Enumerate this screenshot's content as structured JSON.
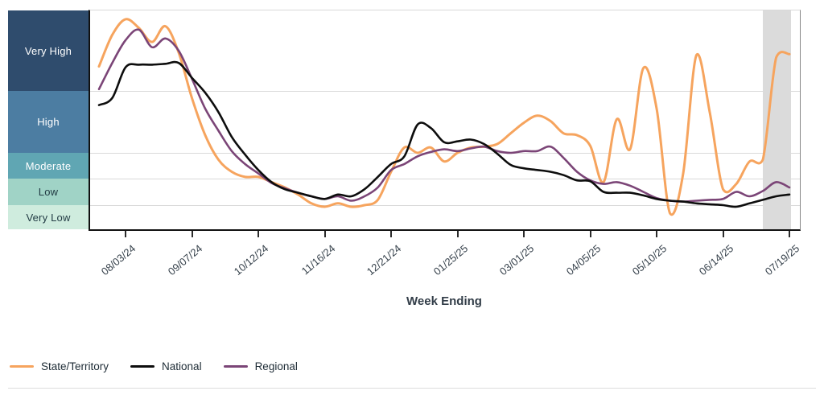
{
  "chart_data": {
    "type": "line",
    "xlabel": "Week Ending",
    "x": [
      "07/20/24",
      "07/27/24",
      "08/03/24",
      "08/10/24",
      "08/17/24",
      "08/24/24",
      "08/31/24",
      "09/07/24",
      "09/14/24",
      "09/21/24",
      "09/28/24",
      "10/05/24",
      "10/12/24",
      "10/19/24",
      "10/26/24",
      "11/02/24",
      "11/09/24",
      "11/16/24",
      "11/23/24",
      "11/30/24",
      "12/07/24",
      "12/14/24",
      "12/21/24",
      "12/28/24",
      "01/04/25",
      "01/11/25",
      "01/18/25",
      "01/25/25",
      "02/01/25",
      "02/08/25",
      "02/15/25",
      "02/22/25",
      "03/01/25",
      "03/08/25",
      "03/15/25",
      "03/22/25",
      "03/29/25",
      "04/05/25",
      "04/12/25",
      "04/19/25",
      "04/26/25",
      "05/03/25",
      "05/10/25",
      "05/17/25",
      "05/24/25",
      "05/31/25",
      "06/07/25",
      "06/14/25",
      "06/21/25",
      "06/28/25",
      "07/05/25",
      "07/12/25",
      "07/19/25"
    ],
    "x_tick_labels": [
      "08/03/24",
      "09/07/24",
      "10/12/24",
      "11/16/24",
      "12/21/24",
      "01/25/25",
      "03/01/25",
      "04/05/25",
      "05/10/25",
      "06/14/25",
      "07/19/25"
    ],
    "x_tick_indices": [
      2,
      7,
      12,
      17,
      22,
      27,
      32,
      37,
      42,
      47,
      52
    ],
    "y_axis": {
      "min": 0,
      "max": 12.6,
      "gridlines": true
    },
    "y_bands": [
      {
        "label": "Very High",
        "from": 8,
        "to": 12.6,
        "color": "#2f4c6d",
        "text_color": "#ffffff"
      },
      {
        "label": "High",
        "from": 4.5,
        "to": 8,
        "color": "#4c7da2",
        "text_color": "#ffffff"
      },
      {
        "label": "Moderate",
        "from": 3,
        "to": 4.5,
        "color": "#60a6b3",
        "text_color": "#ffffff"
      },
      {
        "label": "Low",
        "from": 1.5,
        "to": 3,
        "color": "#a0d3c6",
        "text_color": "#223b44"
      },
      {
        "label": "Very Low",
        "from": 0,
        "to": 1.5,
        "color": "#cfecde",
        "text_color": "#223b44"
      }
    ],
    "shaded_region": {
      "start_index": 50,
      "end_index": 52,
      "color": "#dbdbdb"
    },
    "series": [
      {
        "name": "State/Territory",
        "color": "#f6a45e",
        "values": [
          9.4,
          11.2,
          12.1,
          11.6,
          10.8,
          11.7,
          10.2,
          7.6,
          5.5,
          4.1,
          3.4,
          3.1,
          3.1,
          2.8,
          2.5,
          2.1,
          1.6,
          1.4,
          1.6,
          1.4,
          1.5,
          1.8,
          3.4,
          4.8,
          4.5,
          4.8,
          4.0,
          4.5,
          4.8,
          4.85,
          5.0,
          5.6,
          6.2,
          6.6,
          6.3,
          5.6,
          5.5,
          4.9,
          2.8,
          6.4,
          4.7,
          9.3,
          7.0,
          1.0,
          3.3,
          10.05,
          6.8,
          2.4,
          2.7,
          4.0,
          4.1,
          9.9,
          10.1
        ]
      },
      {
        "name": "National",
        "color": "#0d0d0d",
        "values": [
          7.2,
          7.6,
          9.35,
          9.5,
          9.5,
          9.55,
          9.6,
          8.75,
          7.9,
          6.8,
          5.4,
          4.4,
          3.5,
          2.8,
          2.4,
          2.2,
          2.0,
          1.85,
          2.1,
          2.0,
          2.4,
          3.1,
          3.85,
          4.3,
          6.1,
          5.9,
          5.1,
          5.15,
          5.25,
          5.0,
          4.45,
          3.8,
          3.6,
          3.5,
          3.4,
          3.2,
          2.9,
          2.85,
          2.25,
          2.2,
          2.2,
          2.05,
          1.85,
          1.75,
          1.7,
          1.6,
          1.55,
          1.5,
          1.4,
          1.6,
          1.8,
          2.0,
          2.1
        ]
      },
      {
        "name": "Regional",
        "color": "#7b4577",
        "values": [
          8.1,
          9.6,
          10.9,
          11.5,
          10.5,
          11.0,
          10.3,
          8.7,
          7.0,
          5.75,
          4.6,
          3.85,
          3.3,
          2.75,
          2.45,
          2.2,
          2.0,
          1.85,
          2.0,
          1.75,
          2.0,
          2.5,
          3.5,
          3.85,
          4.3,
          4.55,
          4.7,
          4.6,
          4.75,
          4.85,
          4.6,
          4.5,
          4.6,
          4.6,
          4.85,
          4.2,
          3.4,
          2.9,
          2.7,
          2.8,
          2.6,
          2.25,
          1.9,
          1.75,
          1.7,
          1.75,
          1.8,
          1.85,
          2.25,
          2.0,
          2.3,
          2.8,
          2.5
        ]
      }
    ]
  },
  "x_axis_title": "Week Ending",
  "legend": {
    "items": [
      {
        "label": "State/Territory",
        "color": "#f6a45e"
      },
      {
        "label": "National",
        "color": "#0d0d0d"
      },
      {
        "label": "Regional",
        "color": "#7b4577"
      }
    ]
  }
}
